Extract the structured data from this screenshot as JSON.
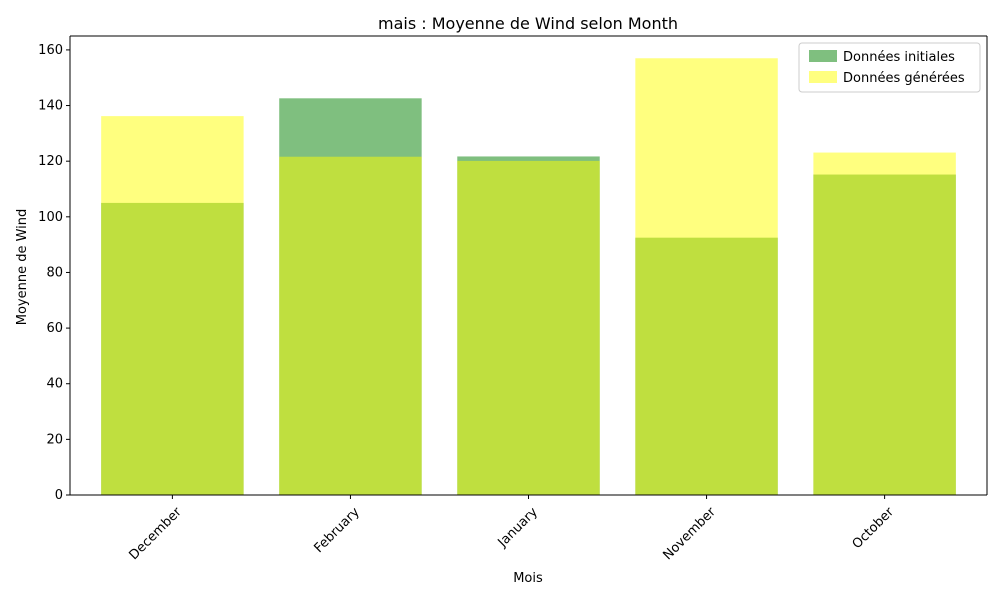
{
  "chart_data": {
    "type": "bar",
    "title": "mais : Moyenne de Wind selon Month",
    "xlabel": "Mois",
    "ylabel": "Moyenne de Wind",
    "categories": [
      "December",
      "February",
      "January",
      "November",
      "October"
    ],
    "series": [
      {
        "name": "Données initiales",
        "values": [
          105.0,
          142.6,
          121.7,
          92.5,
          115.2
        ],
        "color": "#008000",
        "opacity": 0.5
      },
      {
        "name": "Données générées",
        "values": [
          136.2,
          121.6,
          120.1,
          157.0,
          123.1
        ],
        "color": "#ffff00",
        "opacity": 0.5
      }
    ],
    "ylim": [
      0,
      165
    ],
    "yticks": [
      0,
      20,
      40,
      60,
      80,
      100,
      120,
      140,
      160
    ],
    "grid": false,
    "legend": "top-right",
    "xtick_rotation": 45
  }
}
